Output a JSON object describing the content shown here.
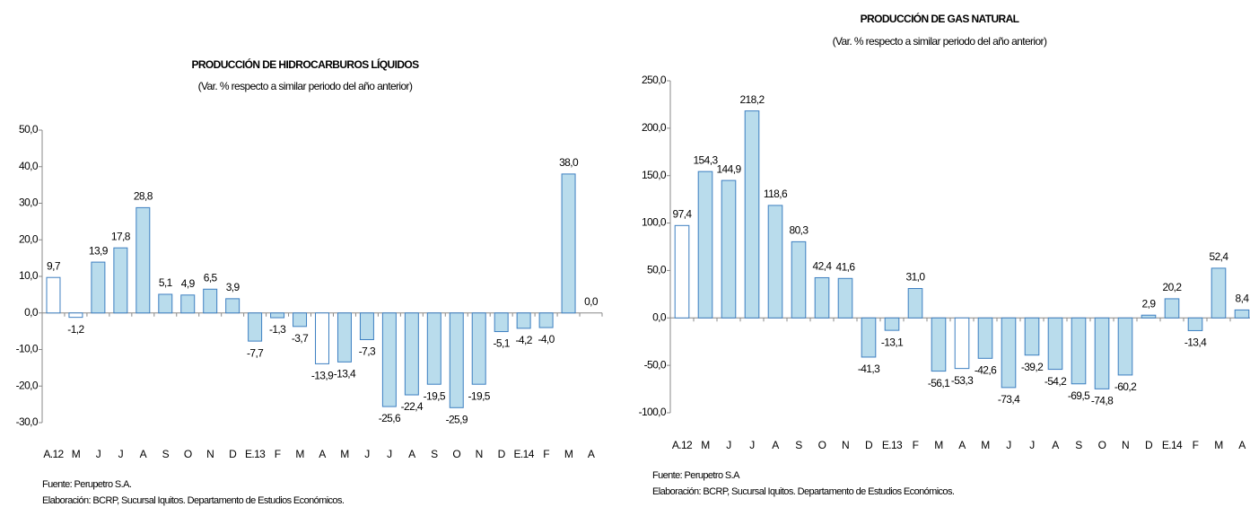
{
  "chart_data": [
    {
      "type": "bar",
      "title": "PRODUCCIÓN DE HIDROCARBUROS LÍQUIDOS",
      "subtitle": "(Var. % respecto a similar periodo del año anterior)",
      "categories": [
        "A.12",
        "M",
        "J",
        "J",
        "A",
        "S",
        "O",
        "N",
        "D",
        "E.13",
        "F",
        "M",
        "A",
        "M",
        "J",
        "J",
        "A",
        "S",
        "O",
        "N",
        "D",
        "E.14",
        "F",
        "M",
        "A"
      ],
      "values": [
        9.7,
        -1.2,
        13.9,
        17.8,
        28.8,
        5.1,
        4.9,
        6.5,
        3.9,
        -7.7,
        -1.3,
        -3.7,
        -13.9,
        -13.4,
        -7.3,
        -25.6,
        -22.4,
        -19.5,
        -25.9,
        -19.5,
        -5.1,
        -4.2,
        -4.0,
        38.0,
        0.0
      ],
      "value_labels": [
        "9,7",
        "-1,2",
        "13,9",
        "17,8",
        "28,8",
        "5,1",
        "4,9",
        "6,5",
        "3,9",
        "-7,7",
        "-1,3",
        "-3,7",
        "-13,9",
        "-13,4",
        "-7,3",
        "-25,6",
        "-22,4",
        "-19,5",
        "-25,9",
        "-19,5",
        "-5,1",
        "-4,2",
        "-4,0",
        "38,0",
        "0,0"
      ],
      "colors": [
        "#ffffff",
        "#ffffff",
        "#b9dcec",
        "#b9dcec",
        "#b9dcec",
        "#b9dcec",
        "#b9dcec",
        "#b9dcec",
        "#b9dcec",
        "#b9dcec",
        "#b9dcec",
        "#b9dcec",
        "#ffffff",
        "#b9dcec",
        "#b9dcec",
        "#b9dcec",
        "#b9dcec",
        "#b9dcec",
        "#b9dcec",
        "#b9dcec",
        "#b9dcec",
        "#b9dcec",
        "#b9dcec",
        "#b9dcec",
        "#ffffff"
      ],
      "edge_color": "#3d7fc1",
      "ylim": [
        -30,
        50
      ],
      "yticks": [
        {
          "value": -30,
          "label": "-30,0"
        },
        {
          "value": -20,
          "label": "-20,0"
        },
        {
          "value": -10,
          "label": "-10,0"
        },
        {
          "value": 0,
          "label": "0,0"
        },
        {
          "value": 10,
          "label": "10,0"
        },
        {
          "value": 20,
          "label": "20,0"
        },
        {
          "value": 30,
          "label": "30,0"
        },
        {
          "value": 40,
          "label": "40,0"
        },
        {
          "value": 50,
          "label": "50,0"
        }
      ],
      "source": "Fuente: Perupetro S.A.",
      "note": "Elaboración: BCRP, Sucursal Iquitos. Departamento de Estudios Económicos."
    },
    {
      "type": "bar",
      "title": "PRODUCCIÓN DE GAS NATURAL",
      "subtitle": "(Var. % respecto a similar periodo del año anterior)",
      "categories": [
        "A.12",
        "M",
        "J",
        "J",
        "A",
        "S",
        "O",
        "N",
        "D",
        "E.13",
        "F",
        "M",
        "A",
        "M",
        "J",
        "J",
        "A",
        "S",
        "O",
        "N",
        "D",
        "E.14",
        "F",
        "M",
        "A"
      ],
      "values": [
        97.4,
        154.3,
        144.9,
        218.2,
        118.6,
        80.3,
        42.4,
        41.6,
        -41.3,
        -13.1,
        31.0,
        -56.1,
        -53.3,
        -42.6,
        -73.4,
        -39.2,
        -54.2,
        -69.5,
        -74.8,
        -60.2,
        2.9,
        20.2,
        -13.4,
        52.4,
        8.4
      ],
      "value_labels": [
        "97,4",
        "154,3",
        "144,9",
        "218,2",
        "118,6",
        "80,3",
        "42,4",
        "41,6",
        "-41,3",
        "-13,1",
        "31,0",
        "-56,1",
        "-53,3",
        "-42,6",
        "-73,4",
        "-39,2",
        "-54,2",
        "-69,5",
        "-74,8",
        "-60,2",
        "2,9",
        "20,2",
        "-13,4",
        "52,4",
        "8,4"
      ],
      "colors": [
        "#ffffff",
        "#b9dcec",
        "#b9dcec",
        "#b9dcec",
        "#b9dcec",
        "#b9dcec",
        "#b9dcec",
        "#b9dcec",
        "#b9dcec",
        "#b9dcec",
        "#b9dcec",
        "#b9dcec",
        "#ffffff",
        "#b9dcec",
        "#b9dcec",
        "#b9dcec",
        "#b9dcec",
        "#b9dcec",
        "#b9dcec",
        "#b9dcec",
        "#b9dcec",
        "#b9dcec",
        "#b9dcec",
        "#b9dcec",
        "#b9dcec"
      ],
      "edge_color": "#3d7fc1",
      "ylim": [
        -100,
        250
      ],
      "yticks": [
        {
          "value": -100,
          "label": "-100,0"
        },
        {
          "value": -50,
          "label": "-50,0"
        },
        {
          "value": 0,
          "label": "0,0"
        },
        {
          "value": 50,
          "label": "50,0"
        },
        {
          "value": 100,
          "label": "100,0"
        },
        {
          "value": 150,
          "label": "150,0"
        },
        {
          "value": 200,
          "label": "200,0"
        },
        {
          "value": 250,
          "label": "250,0"
        }
      ],
      "source": "Fuente: Perupetro S.A",
      "note": "Elaboración: BCRP, Sucursal Iquitos. Departamento de Estudios Económicos."
    }
  ]
}
